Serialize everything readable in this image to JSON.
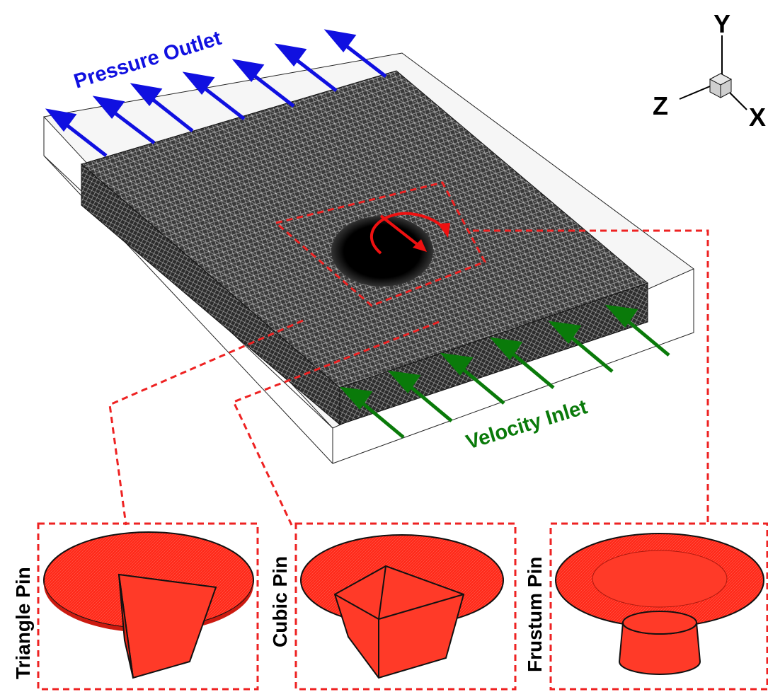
{
  "labels": {
    "pressure_outlet": "Pressure Outlet",
    "velocity_inlet": "Velocity Inlet"
  },
  "axes": {
    "y": "Y",
    "z": "Z",
    "x": "X"
  },
  "panels": [
    {
      "id": "triangle",
      "label": "Triangle Pin"
    },
    {
      "id": "cubic",
      "label": "Cubic Pin"
    },
    {
      "id": "frustum",
      "label": "Frustum Pin"
    }
  ],
  "colors": {
    "outlet_arrow": "#1010e0",
    "inlet_arrow": "#0a7a0a",
    "rotation": "#ee1111",
    "highlight": "#ee2222",
    "tool": "#ff2a1a",
    "mesh": "#111111"
  }
}
